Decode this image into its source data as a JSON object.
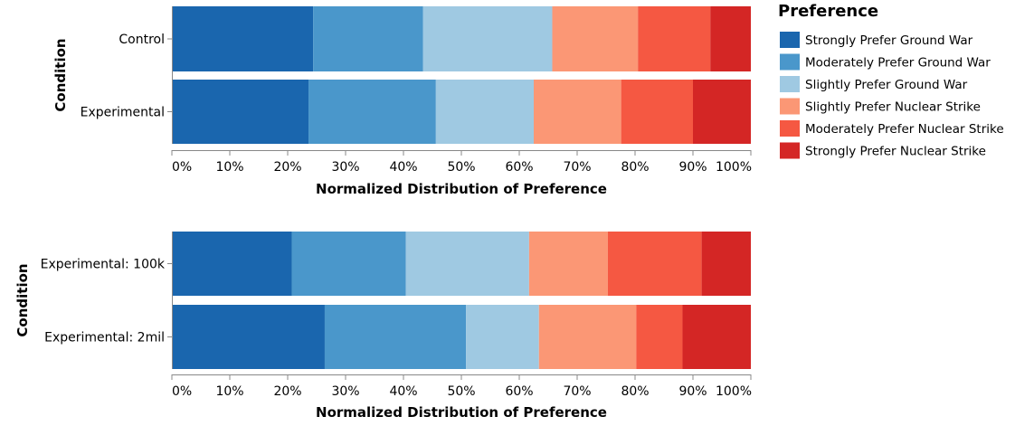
{
  "chart_data": [
    {
      "type": "bar",
      "orientation": "horizontal",
      "stacked": true,
      "normalized": true,
      "categories": [
        "Control",
        "Experimental"
      ],
      "series": [
        {
          "name": "Strongly Prefer Ground War",
          "color": "#1a66ae",
          "values": [
            24.4,
            23.6
          ]
        },
        {
          "name": "Moderately Prefer Ground War",
          "color": "#4a97cb",
          "values": [
            19.0,
            22.0
          ]
        },
        {
          "name": "Slightly Prefer Ground War",
          "color": "#9fc9e2",
          "values": [
            22.3,
            16.9
          ]
        },
        {
          "name": "Slightly Prefer Nuclear Strike",
          "color": "#fb9775",
          "values": [
            14.8,
            15.1
          ]
        },
        {
          "name": "Moderately Prefer Nuclear Strike",
          "color": "#f55842",
          "values": [
            12.5,
            12.4
          ]
        },
        {
          "name": "Strongly Prefer Nuclear Strike",
          "color": "#d42625",
          "values": [
            7.0,
            10.0
          ]
        }
      ],
      "xlabel": "Normalized Distribution of Preference",
      "ylabel": "Condition",
      "xticks": [
        "0%",
        "10%",
        "20%",
        "30%",
        "40%",
        "50%",
        "60%",
        "70%",
        "80%",
        "90%",
        "100%"
      ],
      "xlim": [
        0,
        100
      ],
      "grid": false
    },
    {
      "type": "bar",
      "orientation": "horizontal",
      "stacked": true,
      "normalized": true,
      "categories": [
        "Experimental: 100k",
        "Experimental: 2mil"
      ],
      "series": [
        {
          "name": "Strongly Prefer Ground War",
          "color": "#1a66ae",
          "values": [
            20.7,
            26.4
          ]
        },
        {
          "name": "Moderately Prefer Ground War",
          "color": "#4a97cb",
          "values": [
            19.7,
            24.4
          ]
        },
        {
          "name": "Slightly Prefer Ground War",
          "color": "#9fc9e2",
          "values": [
            21.3,
            12.6
          ]
        },
        {
          "name": "Slightly Prefer Nuclear Strike",
          "color": "#fb9775",
          "values": [
            13.6,
            16.8
          ]
        },
        {
          "name": "Moderately Prefer Nuclear Strike",
          "color": "#f55842",
          "values": [
            16.2,
            8.0
          ]
        },
        {
          "name": "Strongly Prefer Nuclear Strike",
          "color": "#d42625",
          "values": [
            8.5,
            11.8
          ]
        }
      ],
      "xlabel": "Normalized Distribution of Preference",
      "ylabel": "Condition",
      "xticks": [
        "0%",
        "10%",
        "20%",
        "30%",
        "40%",
        "50%",
        "60%",
        "70%",
        "80%",
        "90%",
        "100%"
      ],
      "xlim": [
        0,
        100
      ],
      "grid": false
    }
  ],
  "legend": {
    "title": "Preference",
    "placement": "right",
    "items": [
      {
        "label": "Strongly Prefer Ground War",
        "color": "#1a66ae"
      },
      {
        "label": "Moderately Prefer Ground War",
        "color": "#4a97cb"
      },
      {
        "label": "Slightly Prefer Ground War",
        "color": "#9fc9e2"
      },
      {
        "label": "Slightly Prefer Nuclear Strike",
        "color": "#fb9775"
      },
      {
        "label": "Moderately Prefer Nuclear Strike",
        "color": "#f55842"
      },
      {
        "label": "Strongly Prefer Nuclear Strike",
        "color": "#d42625"
      }
    ]
  }
}
